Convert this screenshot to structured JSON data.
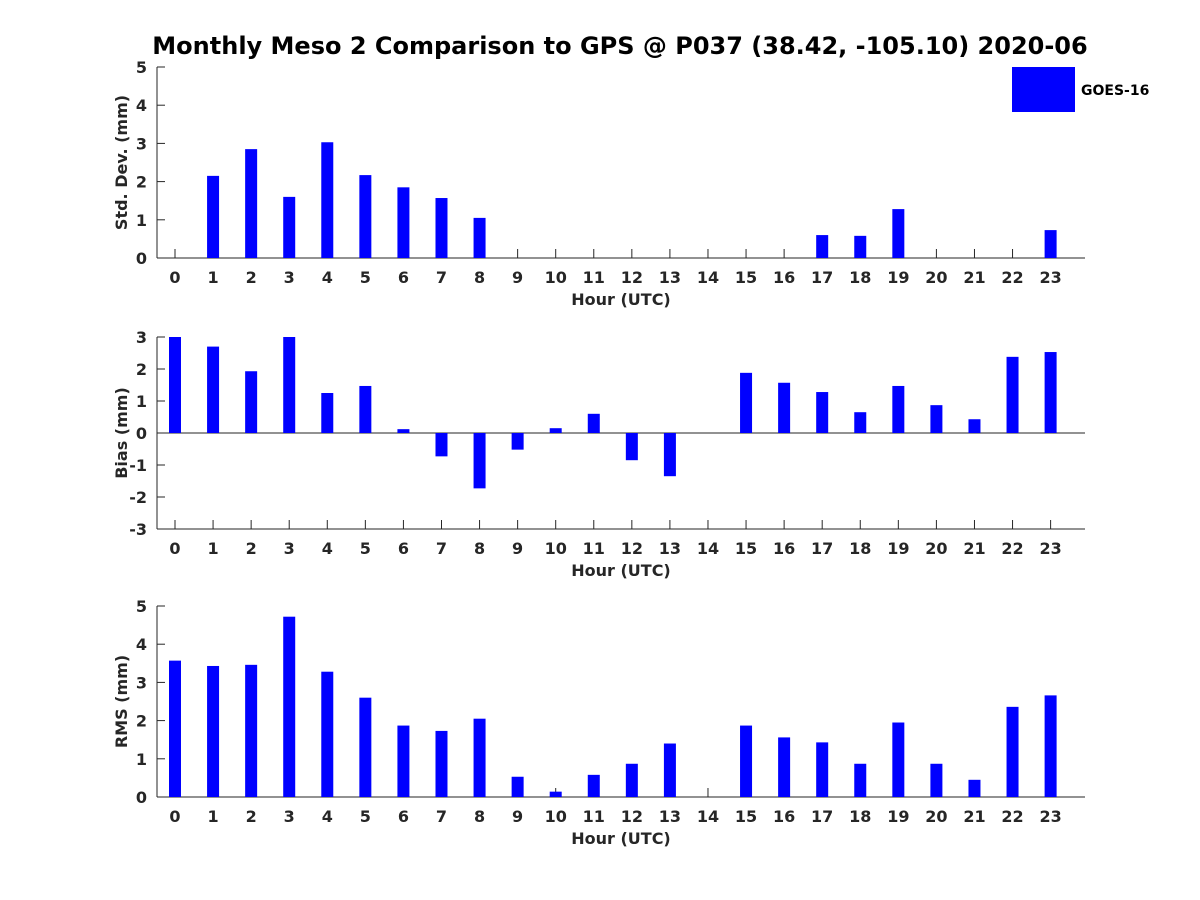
{
  "title": "Monthly Meso 2 Comparison to GPS @ P037 (38.42, -105.10) 2020-06",
  "colors": {
    "bar": "#0000ff",
    "axis": "#262626",
    "background": "#ffffff"
  },
  "legend": {
    "label": "GOES-16",
    "placement": "top-right"
  },
  "chart_data": [
    {
      "type": "bar",
      "panel": "std-dev",
      "xlabel": "Hour (UTC)",
      "ylabel": "Std. Dev. (mm)",
      "ylim": [
        0,
        5
      ],
      "yticks": [
        0,
        1,
        2,
        3,
        4,
        5
      ],
      "categories": [
        0,
        1,
        2,
        3,
        4,
        5,
        6,
        7,
        8,
        9,
        10,
        11,
        12,
        13,
        14,
        15,
        16,
        17,
        18,
        19,
        20,
        21,
        22,
        23
      ],
      "series": [
        {
          "name": "GOES-16",
          "values": [
            0,
            2.15,
            2.85,
            1.6,
            3.03,
            2.17,
            1.85,
            1.57,
            1.05,
            0,
            0,
            0,
            0,
            0,
            0,
            0,
            0,
            0.6,
            0.58,
            1.28,
            0,
            0,
            0,
            0.73
          ]
        }
      ]
    },
    {
      "type": "bar",
      "panel": "bias",
      "xlabel": "Hour (UTC)",
      "ylabel": "Bias (mm)",
      "ylim": [
        -3,
        3
      ],
      "yticks": [
        -3,
        -2,
        -1,
        0,
        1,
        2,
        3
      ],
      "categories": [
        0,
        1,
        2,
        3,
        4,
        5,
        6,
        7,
        8,
        9,
        10,
        11,
        12,
        13,
        14,
        15,
        16,
        17,
        18,
        19,
        20,
        21,
        22,
        23
      ],
      "series": [
        {
          "name": "GOES-16",
          "values": [
            3.0,
            2.7,
            1.93,
            3.0,
            1.25,
            1.47,
            0.12,
            -0.73,
            -1.73,
            -0.52,
            0.15,
            0.6,
            -0.85,
            -1.35,
            0,
            1.88,
            1.57,
            1.28,
            0.65,
            1.47,
            0.87,
            0.43,
            2.38,
            2.53
          ]
        }
      ]
    },
    {
      "type": "bar",
      "panel": "rms",
      "xlabel": "Hour (UTC)",
      "ylabel": "RMS (mm)",
      "ylim": [
        0,
        5
      ],
      "yticks": [
        0,
        1,
        2,
        3,
        4,
        5
      ],
      "categories": [
        0,
        1,
        2,
        3,
        4,
        5,
        6,
        7,
        8,
        9,
        10,
        11,
        12,
        13,
        14,
        15,
        16,
        17,
        18,
        19,
        20,
        21,
        22,
        23
      ],
      "series": [
        {
          "name": "GOES-16",
          "values": [
            3.57,
            3.43,
            3.46,
            4.72,
            3.28,
            2.6,
            1.87,
            1.73,
            2.05,
            0.53,
            0.14,
            0.58,
            0.87,
            1.4,
            0,
            1.87,
            1.56,
            1.43,
            0.87,
            1.95,
            0.87,
            0.45,
            2.36,
            2.66
          ]
        }
      ]
    }
  ]
}
